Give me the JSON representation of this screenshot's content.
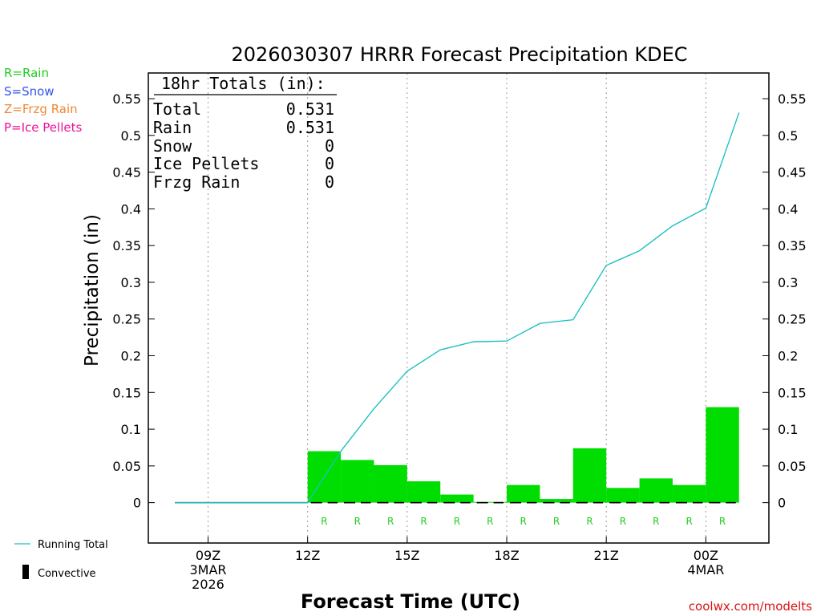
{
  "chart_data": {
    "type": "bar",
    "title": "2026030307 HRRR Forecast Precipitation KDEC",
    "xlabel": "Forecast Time (UTC)",
    "ylabel": "Precipitation (in)",
    "ylim": [
      -0.055,
      0.585
    ],
    "yticks": [
      0,
      0.05,
      0.1,
      0.15,
      0.2,
      0.25,
      0.3,
      0.35,
      0.4,
      0.45,
      0.5,
      0.55
    ],
    "ytick_labels": [
      "0",
      "0.05",
      "0.1",
      "0.15",
      "0.2",
      "0.25",
      "0.3",
      "0.35",
      "0.4",
      "0.45",
      "0.5",
      "0.55"
    ],
    "xlim": [
      7.2,
      25.9
    ],
    "xticks": [
      {
        "hour": 9,
        "lines": [
          "09Z",
          "3MAR",
          "2026"
        ]
      },
      {
        "hour": 12,
        "lines": [
          "12Z"
        ]
      },
      {
        "hour": 15,
        "lines": [
          "15Z"
        ]
      },
      {
        "hour": 18,
        "lines": [
          "18Z"
        ]
      },
      {
        "hour": 21,
        "lines": [
          "21Z"
        ]
      },
      {
        "hour": 24,
        "lines": [
          "00Z",
          "4MAR"
        ]
      }
    ],
    "hours": [
      8,
      9,
      10,
      11,
      12,
      13,
      14,
      15,
      16,
      17,
      18,
      19,
      20,
      21,
      22,
      23,
      24,
      25
    ],
    "hourly_precip": [
      0,
      0,
      0,
      0,
      0,
      0.07,
      0.058,
      0.051,
      0.029,
      0.011,
      0.001,
      0.024,
      0.005,
      0.074,
      0.02,
      0.033,
      0.024,
      0.13
    ],
    "running_total": [
      0,
      0,
      0,
      0,
      0,
      0.07,
      0.128,
      0.179,
      0.208,
      0.219,
      0.22,
      0.244,
      0.249,
      0.323,
      0.343,
      0.377,
      0.401,
      0.531
    ],
    "precip_type_labels": [
      {
        "hour": 13,
        "label": "R"
      },
      {
        "hour": 14,
        "label": "R"
      },
      {
        "hour": 15,
        "label": "R"
      },
      {
        "hour": 16,
        "label": "R"
      },
      {
        "hour": 17,
        "label": "R"
      },
      {
        "hour": 18,
        "label": "R"
      },
      {
        "hour": 19,
        "label": "R"
      },
      {
        "hour": 20,
        "label": "R"
      },
      {
        "hour": 21,
        "label": "R"
      },
      {
        "hour": 22,
        "label": "R"
      },
      {
        "hour": 23,
        "label": "R"
      },
      {
        "hour": 24,
        "label": "R"
      },
      {
        "hour": 25,
        "label": "R"
      }
    ],
    "bar_color": "#00dd00",
    "line_color": "#20c0c0",
    "totals_box": {
      "title": "18hr Totals (in):",
      "rows": [
        {
          "label": "Total",
          "value": "0.531"
        },
        {
          "label": "Rain",
          "value": "0.531"
        },
        {
          "label": "Snow",
          "value": "0"
        },
        {
          "label": "Ice Pellets",
          "value": "0"
        },
        {
          "label": "Frzg Rain",
          "value": "0"
        }
      ]
    }
  },
  "type_legend": [
    {
      "text": "R=Rain",
      "color": "#22cc22"
    },
    {
      "text": "S=Snow",
      "color": "#3355ee"
    },
    {
      "text": "Z=Frzg Rain",
      "color": "#ee8833"
    },
    {
      "text": "P=Ice Pellets",
      "color": "#ee1199"
    }
  ],
  "series_legend": {
    "running_total": "Running Total",
    "convective": "Convective"
  },
  "credit": "coolwx.com/modelts"
}
